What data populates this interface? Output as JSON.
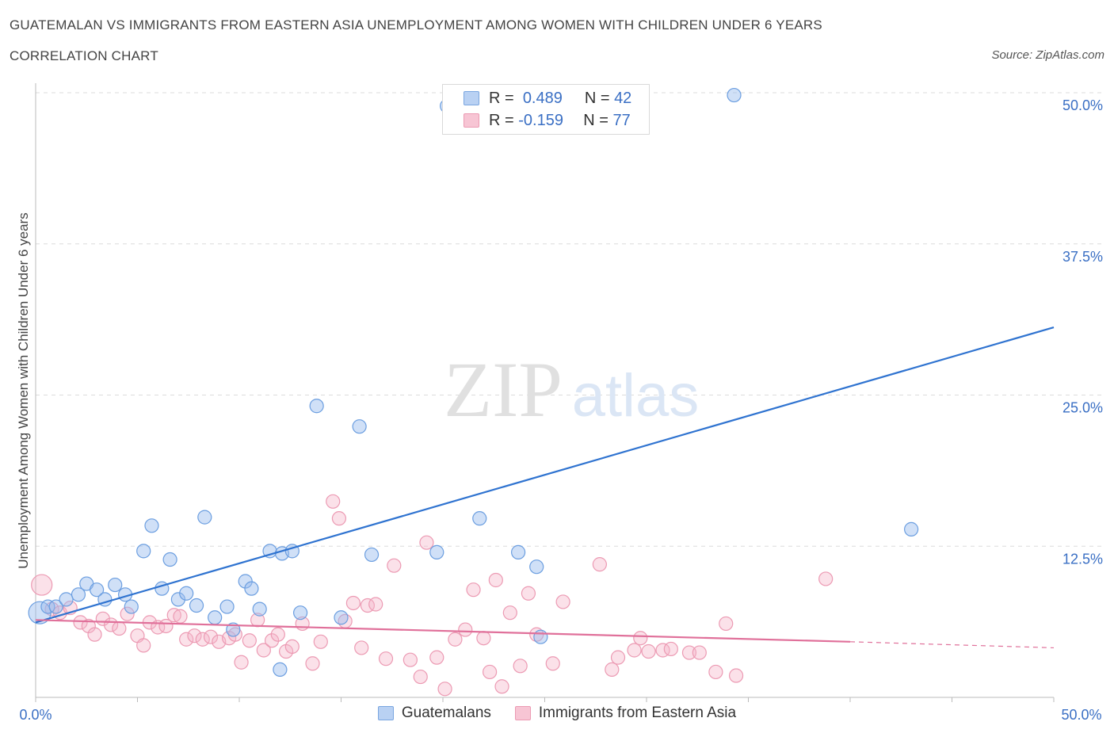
{
  "header": {
    "title": "GUATEMALAN VS IMMIGRANTS FROM EASTERN ASIA UNEMPLOYMENT AMONG WOMEN WITH CHILDREN UNDER 6 YEARS",
    "subtitle": "CORRELATION CHART",
    "source": "Source: ZipAtlas.com"
  },
  "watermark": {
    "zip": "ZIP",
    "atlas": "atlas"
  },
  "legend": {
    "r_label": "R =",
    "n_label": "N =",
    "series": [
      {
        "name": "Guatemalans",
        "r": "0.489",
        "n": "42",
        "fill": "#b9d1f3",
        "stroke": "#7aa6e0"
      },
      {
        "name": "Immigrants from Eastern Asia",
        "r": "-0.159",
        "n": "77",
        "fill": "#f7c5d4",
        "stroke": "#ec9ab3"
      }
    ]
  },
  "colors": {
    "blue_line": "#2f73d0",
    "blue_fill": "rgba(150,186,238,0.45)",
    "blue_stroke": "#6b9ee0",
    "pink_line": "#e0709a",
    "pink_fill": "rgba(246,180,200,0.4)",
    "pink_stroke": "#ec9ab3",
    "axis_text": "#3a6fc4",
    "grid": "#dcdcdc"
  },
  "chart_data": {
    "type": "scatter",
    "title": "GUATEMALAN VS IMMIGRANTS FROM EASTERN ASIA UNEMPLOYMENT AMONG WOMEN WITH CHILDREN UNDER 6 YEARS",
    "xlabel": "",
    "ylabel": "Unemployment Among Women with Children Under 6 years",
    "xlim": [
      0,
      50
    ],
    "ylim": [
      0,
      50
    ],
    "x_tick_labels": [
      "0.0%",
      "50.0%"
    ],
    "y_ticks": [
      12.5,
      25,
      37.5,
      50
    ],
    "y_tick_labels": [
      "12.5%",
      "25.0%",
      "37.5%",
      "50.0%"
    ],
    "grid": true,
    "legend_placement": "top-center",
    "series": [
      {
        "name": "Guatemalans",
        "points": [
          [
            0.2,
            7.0
          ],
          [
            0.6,
            7.5
          ],
          [
            1.0,
            7.5
          ],
          [
            1.5,
            8.1
          ],
          [
            2.1,
            8.5
          ],
          [
            2.5,
            9.4
          ],
          [
            3.0,
            8.9
          ],
          [
            3.4,
            8.1
          ],
          [
            3.9,
            9.3
          ],
          [
            4.4,
            8.5
          ],
          [
            4.7,
            7.5
          ],
          [
            5.3,
            12.1
          ],
          [
            5.7,
            14.2
          ],
          [
            6.2,
            9.0
          ],
          [
            6.6,
            11.4
          ],
          [
            7.0,
            8.1
          ],
          [
            7.4,
            8.6
          ],
          [
            7.9,
            7.6
          ],
          [
            8.3,
            14.9
          ],
          [
            8.8,
            6.6
          ],
          [
            9.4,
            7.5
          ],
          [
            9.7,
            5.6
          ],
          [
            10.3,
            9.6
          ],
          [
            10.6,
            9.0
          ],
          [
            11.0,
            7.3
          ],
          [
            11.5,
            12.1
          ],
          [
            12.1,
            11.9
          ],
          [
            12.6,
            12.1
          ],
          [
            13.0,
            7.0
          ],
          [
            13.8,
            24.1
          ],
          [
            15.0,
            6.6
          ],
          [
            15.9,
            22.4
          ],
          [
            16.5,
            11.8
          ],
          [
            19.7,
            12.0
          ],
          [
            20.2,
            48.9
          ],
          [
            21.8,
            14.8
          ],
          [
            23.7,
            12.0
          ],
          [
            24.6,
            10.8
          ],
          [
            34.3,
            49.8
          ],
          [
            43.0,
            13.9
          ],
          [
            12.0,
            2.3
          ],
          [
            24.8,
            5.0
          ]
        ],
        "sizes_note": "larger point near origin",
        "trend": {
          "x": [
            0,
            50
          ],
          "y": [
            6.2,
            30.6
          ]
        }
      },
      {
        "name": "Immigrants from Eastern Asia",
        "points": [
          [
            0.3,
            9.3
          ],
          [
            0.8,
            7.3
          ],
          [
            1.2,
            7.0
          ],
          [
            1.7,
            7.4
          ],
          [
            2.2,
            6.2
          ],
          [
            2.6,
            5.9
          ],
          [
            2.9,
            5.2
          ],
          [
            3.3,
            6.5
          ],
          [
            3.7,
            6.0
          ],
          [
            4.1,
            5.7
          ],
          [
            4.5,
            6.9
          ],
          [
            5.0,
            5.1
          ],
          [
            5.3,
            4.3
          ],
          [
            5.6,
            6.2
          ],
          [
            6.0,
            5.8
          ],
          [
            6.4,
            5.9
          ],
          [
            6.8,
            6.8
          ],
          [
            7.1,
            6.7
          ],
          [
            7.4,
            4.8
          ],
          [
            7.8,
            5.1
          ],
          [
            8.2,
            4.8
          ],
          [
            8.6,
            5.0
          ],
          [
            9.0,
            4.6
          ],
          [
            9.5,
            4.9
          ],
          [
            9.8,
            5.2
          ],
          [
            10.1,
            2.9
          ],
          [
            10.5,
            4.7
          ],
          [
            10.9,
            6.4
          ],
          [
            11.2,
            3.9
          ],
          [
            11.6,
            4.7
          ],
          [
            11.9,
            5.2
          ],
          [
            12.3,
            3.8
          ],
          [
            12.6,
            4.2
          ],
          [
            13.1,
            6.1
          ],
          [
            13.6,
            2.8
          ],
          [
            14.0,
            4.6
          ],
          [
            14.6,
            16.2
          ],
          [
            14.9,
            14.8
          ],
          [
            15.2,
            6.3
          ],
          [
            15.6,
            7.8
          ],
          [
            16.0,
            4.1
          ],
          [
            16.3,
            7.6
          ],
          [
            16.7,
            7.7
          ],
          [
            17.2,
            3.2
          ],
          [
            17.6,
            10.9
          ],
          [
            18.4,
            3.1
          ],
          [
            18.9,
            1.7
          ],
          [
            19.2,
            12.8
          ],
          [
            19.7,
            3.3
          ],
          [
            20.1,
            0.7
          ],
          [
            20.6,
            4.8
          ],
          [
            21.1,
            5.6
          ],
          [
            21.5,
            8.9
          ],
          [
            22.0,
            4.9
          ],
          [
            22.3,
            2.1
          ],
          [
            22.6,
            9.7
          ],
          [
            22.9,
            0.9
          ],
          [
            23.3,
            7.0
          ],
          [
            23.8,
            2.6
          ],
          [
            24.2,
            8.6
          ],
          [
            24.6,
            5.2
          ],
          [
            25.4,
            2.8
          ],
          [
            25.9,
            7.9
          ],
          [
            27.7,
            11.0
          ],
          [
            28.3,
            2.3
          ],
          [
            28.6,
            3.3
          ],
          [
            29.4,
            3.9
          ],
          [
            29.7,
            4.9
          ],
          [
            30.1,
            3.8
          ],
          [
            30.8,
            3.9
          ],
          [
            31.2,
            4.0
          ],
          [
            32.1,
            3.7
          ],
          [
            32.6,
            3.7
          ],
          [
            33.4,
            2.1
          ],
          [
            33.9,
            6.1
          ],
          [
            34.4,
            1.8
          ],
          [
            38.8,
            9.8
          ]
        ],
        "trend": {
          "x": [
            0,
            40
          ],
          "y": [
            6.4,
            4.6
          ]
        },
        "trend_dashed": {
          "x": [
            40,
            50
          ],
          "y": [
            4.6,
            4.1
          ]
        }
      }
    ]
  }
}
